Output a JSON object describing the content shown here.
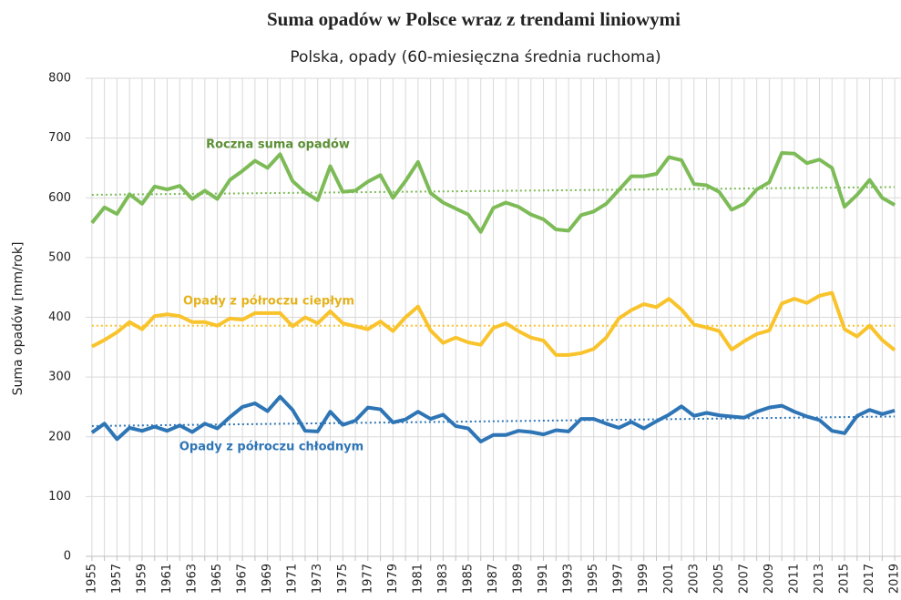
{
  "chart_data": {
    "type": "line",
    "title": "Suma opadów w Polsce wraz z trendami liniowymi",
    "subtitle": "Polska, opady (60-miesięczna średnia ruchoma)",
    "y_label": "Suma opadów [mm/rok]",
    "categories": [
      "1955",
      null,
      "1957",
      null,
      "1959",
      null,
      "1961",
      null,
      "1963",
      null,
      "1965",
      null,
      "1967",
      null,
      "1969",
      null,
      "1971",
      null,
      "1973",
      null,
      "1975",
      null,
      "1977",
      null,
      "1979",
      null,
      "1981",
      null,
      "1983",
      null,
      "1985",
      null,
      "1987",
      null,
      "1989",
      null,
      "1991",
      null,
      "1993",
      null,
      "1995",
      null,
      "1997",
      null,
      "1999",
      null,
      "2001",
      null,
      "2003",
      null,
      "2005",
      null,
      "2007",
      null,
      "2009",
      null,
      "2011",
      null,
      "2013",
      null,
      "2015",
      null,
      "2017",
      null,
      "2019"
    ],
    "ylim": [
      0,
      800
    ],
    "yticks": [
      0,
      100,
      200,
      300,
      400,
      500,
      600,
      700,
      800
    ],
    "grid": true,
    "series": [
      {
        "name": "Roczna suma opadów",
        "color": "#7dbb57",
        "label_color": "#5b8f35",
        "values": [
          558,
          584,
          573,
          606,
          590,
          619,
          614,
          620,
          598,
          612,
          598,
          630,
          645,
          662,
          650,
          673,
          628,
          609,
          596,
          653,
          610,
          612,
          627,
          638,
          600,
          628,
          660,
          608,
          592,
          582,
          572,
          543,
          583,
          592,
          585,
          572,
          564,
          547,
          545,
          571,
          577,
          590,
          613,
          636,
          636,
          640,
          668,
          663,
          623,
          621,
          610,
          580,
          590,
          614,
          626,
          675,
          674,
          658,
          664,
          650,
          585,
          605,
          630,
          600,
          588
        ],
        "trend": [
          605,
          618
        ]
      },
      {
        "name": "Opady z półroczu ciepłym",
        "color": "#f9c32c",
        "label_color": "#e5b21c",
        "values": [
          351,
          362,
          375,
          392,
          380,
          402,
          405,
          402,
          392,
          392,
          386,
          398,
          396,
          407,
          407,
          407,
          385,
          400,
          390,
          410,
          390,
          385,
          380,
          393,
          377,
          400,
          418,
          378,
          357,
          366,
          358,
          354,
          382,
          390,
          377,
          366,
          361,
          337,
          337,
          340,
          347,
          366,
          398,
          412,
          422,
          417,
          431,
          413,
          388,
          383,
          377,
          346,
          360,
          372,
          378,
          423,
          431,
          424,
          436,
          441,
          380,
          368,
          386,
          362,
          345
        ],
        "trend": [
          386,
          386
        ]
      },
      {
        "name": "Opady z półroczu chłodnym",
        "color": "#2e75b6",
        "label_color": "#2e75b6",
        "values": [
          207,
          222,
          196,
          215,
          210,
          217,
          210,
          219,
          208,
          222,
          214,
          233,
          250,
          256,
          243,
          267,
          245,
          210,
          209,
          242,
          220,
          227,
          249,
          246,
          224,
          229,
          242,
          230,
          237,
          218,
          214,
          192,
          203,
          203,
          210,
          208,
          204,
          211,
          209,
          230,
          230,
          222,
          215,
          225,
          214,
          226,
          237,
          251,
          235,
          240,
          236,
          234,
          232,
          242,
          249,
          252,
          242,
          234,
          228,
          210,
          206,
          235,
          245,
          238,
          244
        ],
        "trend": [
          218,
          234
        ]
      }
    ]
  }
}
